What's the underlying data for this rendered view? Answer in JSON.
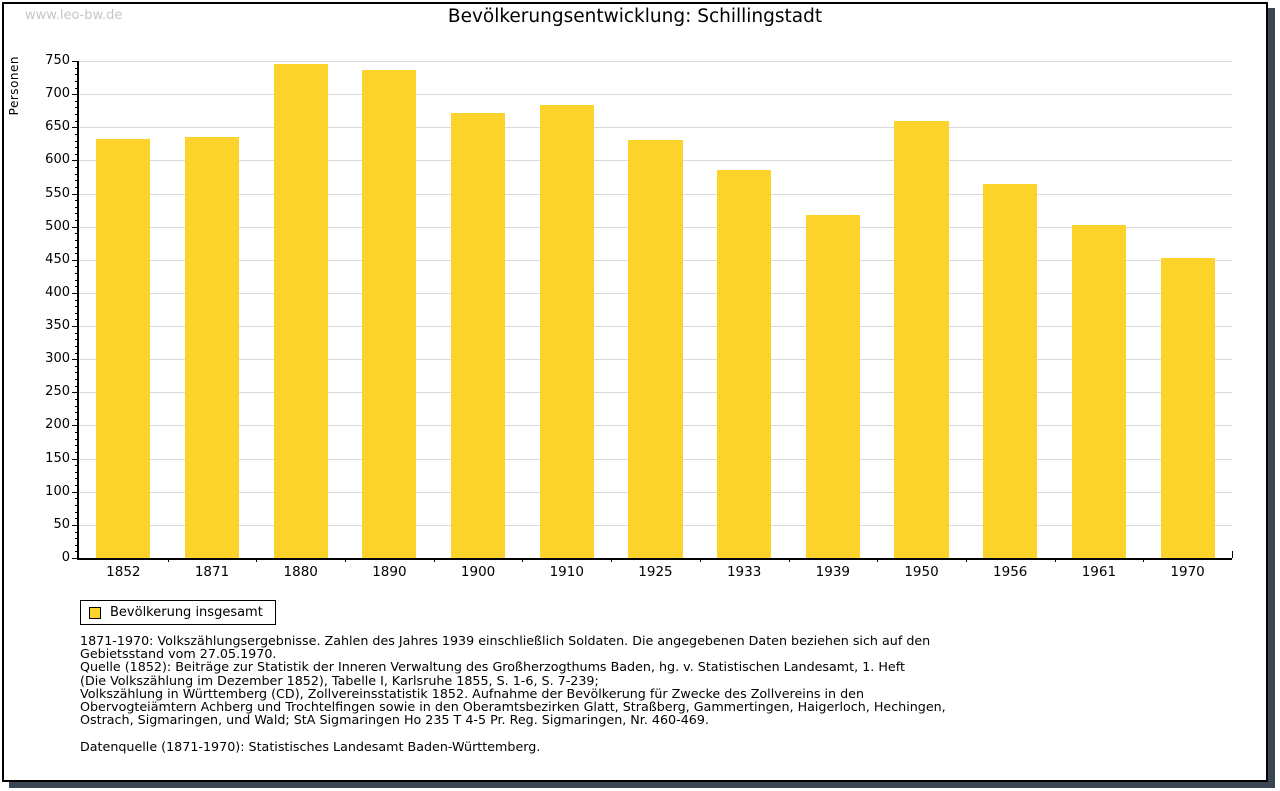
{
  "watermark": "www.leo-bw.de",
  "title": "Bevölkerungsentwicklung: Schillingstadt",
  "chart_data": {
    "type": "bar",
    "title": "Bevölkerungsentwicklung: Schillingstadt",
    "xlabel": "",
    "ylabel": "Personen",
    "categories": [
      "1852",
      "1871",
      "1880",
      "1890",
      "1900",
      "1910",
      "1925",
      "1933",
      "1939",
      "1950",
      "1956",
      "1961",
      "1970"
    ],
    "values": [
      633,
      636,
      746,
      737,
      672,
      683,
      631,
      586,
      517,
      659,
      565,
      503,
      453
    ],
    "series_name": "Bevölkerung insgesamt",
    "ylim": [
      0,
      750
    ],
    "ytick_step": 50,
    "y_minor_step": 10,
    "grid": "horizontal-major-on",
    "legend_position": "bottom-left",
    "bar_color": "#fcd32b"
  },
  "legend": {
    "label": "Bevölkerung insgesamt",
    "swatch_color": "#fcd32b"
  },
  "footnotes": {
    "lines": [
      "1871-1970: Volkszählungsergebnisse. Zahlen des Jahres 1939 einschließlich Soldaten. Die angegebenen Daten beziehen sich auf den",
      "Gebietsstand vom 27.05.1970.",
      "Quelle (1852): Beiträge zur Statistik der Inneren Verwaltung des Großherzogthums Baden, hg. v. Statistischen Landesamt, 1. Heft",
      "(Die Volkszählung im Dezember 1852), Tabelle I, Karlsruhe 1855, S. 1-6, S. 7-239;",
      "Volkszählung in Württemberg (CD), Zollvereinsstatistik 1852. Aufnahme der Bevölkerung für Zwecke des Zollvereins in den",
      "Obervogteiämtern Achberg und Trochtelfingen sowie in den Oberamtsbezirken Glatt, Straßberg, Gammertingen, Haigerloch, Hechingen,",
      "Ostrach, Sigmaringen, und Wald; StA Sigmaringen Ho 235 T 4-5 Pr. Reg. Sigmaringen, Nr. 460-469."
    ],
    "datasource": "Datenquelle (1871-1970): Statistisches Landesamt Baden-Württemberg."
  },
  "colors": {
    "bar": "#fcd32b",
    "gridline": "#d9d9d9",
    "watermark": "#c6c6c6",
    "frame_shadow": "#3b4452",
    "text": "#000000",
    "background": "#ffffff"
  }
}
